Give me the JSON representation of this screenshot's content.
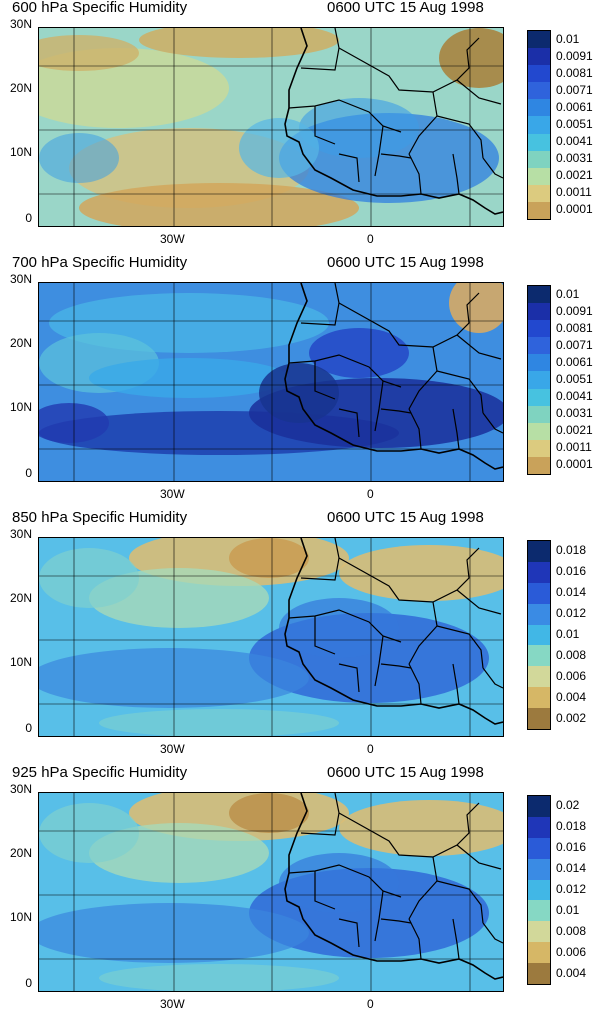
{
  "panels": [
    {
      "title_left": "600 hPa Specific Humidity",
      "title_right": "0600 UTC 15 Aug 1998",
      "colorbar_labels": [
        "0.01",
        "0.0091",
        "0.0081",
        "0.0071",
        "0.0061",
        "0.0051",
        "0.0041",
        "0.0031",
        "0.0021",
        "0.0011",
        "0.0001"
      ],
      "moisture": "dry"
    },
    {
      "title_left": "700 hPa Specific Humidity",
      "title_right": "0600 UTC 15 Aug 1998",
      "colorbar_labels": [
        "0.01",
        "0.0091",
        "0.0081",
        "0.0071",
        "0.0061",
        "0.0051",
        "0.0041",
        "0.0031",
        "0.0021",
        "0.0011",
        "0.0001"
      ],
      "moisture": "wet"
    },
    {
      "title_left": "850 hPa Specific Humidity",
      "title_right": "0600 UTC 15 Aug 1998",
      "colorbar_labels": [
        "0.018",
        "0.016",
        "0.014",
        "0.012",
        "0.01",
        "0.008",
        "0.006",
        "0.004",
        "0.002"
      ],
      "moisture": "moderate"
    },
    {
      "title_left": "925 hPa Specific Humidity",
      "title_right": "0600 UTC 15 Aug 1998",
      "colorbar_labels": [
        "0.02",
        "0.018",
        "0.016",
        "0.014",
        "0.012",
        "0.01",
        "0.008",
        "0.006",
        "0.004"
      ],
      "moisture": "moderate"
    }
  ],
  "axes": {
    "y_ticks": [
      "30N",
      "20N",
      "10N",
      "0"
    ],
    "x_ticks": [
      "30W",
      "0"
    ]
  },
  "colors": {
    "low": "#8b6a35",
    "mid_low": "#d9b86a",
    "mid": "#9fd8b0",
    "mid_high": "#3ab0e0",
    "high": "#1f3fc8",
    "max": "#0f2a7a"
  }
}
